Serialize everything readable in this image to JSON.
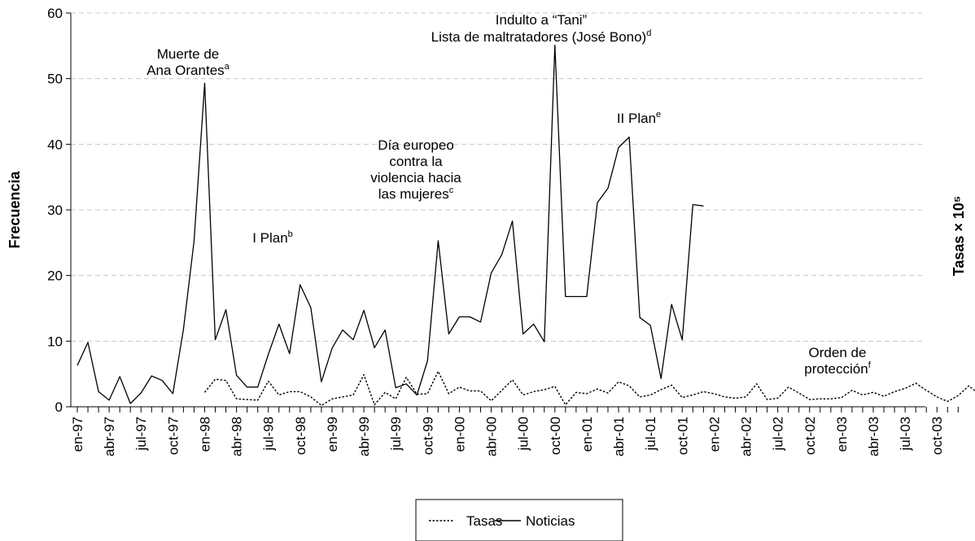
{
  "chart_data": {
    "type": "line",
    "ylabel": "Frecuencia",
    "y2label": "Tasas × 10⁵",
    "ylim": [
      0,
      60
    ],
    "yticks": [
      0,
      10,
      20,
      30,
      40,
      50,
      60
    ],
    "grid": "horizontal dashed",
    "legend_placement": "bottom-center",
    "x_start": "en-97",
    "x_ticks": [
      "en-97",
      "abr-97",
      "jul-97",
      "oct-97",
      "en-98",
      "abr-98",
      "jul-98",
      "oct-98",
      "en-99",
      "abr-99",
      "jul-99",
      "oct-99",
      "en-00",
      "abr-00",
      "jul-00",
      "oct-00",
      "en-01",
      "abr-01",
      "jul-01",
      "oct-01",
      "en-02",
      "abr-02",
      "jul-02",
      "oct-02",
      "en-03",
      "abr-03",
      "jul-03",
      "oct-03"
    ],
    "series": [
      {
        "name": "Noticias",
        "style": "solid",
        "values": [
          6.3,
          9.8,
          2.3,
          1.0,
          4.6,
          0.5,
          2.1,
          4.7,
          4.0,
          2.0,
          11.8,
          25.2,
          49.3,
          10.2,
          14.8,
          4.8,
          3.0,
          3.0,
          8.0,
          12.6,
          8.1,
          18.6,
          15.1,
          3.8,
          8.9,
          11.7,
          10.2,
          14.7,
          9.0,
          11.7,
          2.9,
          3.5,
          1.8,
          7.0,
          25.3,
          11.1,
          13.7,
          13.7,
          12.9,
          20.4,
          23.2,
          28.3,
          11.1,
          12.6,
          9.9,
          55.1,
          16.8,
          16.8,
          16.8,
          31.1,
          33.3,
          39.5,
          41.1,
          13.6,
          12.4,
          4.3,
          15.6,
          10.2,
          30.8,
          30.6
        ]
      },
      {
        "name": "Tasas",
        "style": "dotted",
        "start_index": 12,
        "values": [
          2.2,
          4.2,
          4.0,
          1.2,
          1.1,
          1.0,
          3.9,
          1.8,
          2.3,
          2.3,
          1.5,
          0.2,
          1.2,
          1.5,
          1.8,
          4.9,
          0.3,
          2.2,
          1.2,
          4.5,
          1.9,
          2.0,
          5.4,
          2.0,
          3.0,
          2.4,
          2.4,
          0.9,
          2.5,
          4.1,
          1.8,
          2.3,
          2.6,
          3.1,
          0.3,
          2.2,
          2.0,
          2.7,
          2.1,
          3.8,
          3.2,
          1.5,
          1.8,
          2.6,
          3.3,
          1.4,
          1.8,
          2.3,
          2.0,
          1.5,
          1.3,
          1.5,
          3.5,
          1.1,
          1.3,
          3.0,
          2.1,
          1.1,
          1.2,
          1.2,
          1.4,
          2.5,
          1.8,
          2.2,
          1.6,
          2.3,
          2.8,
          3.6,
          2.5,
          1.5,
          0.8,
          1.7,
          3.2,
          1.9
        ]
      }
    ],
    "annotations": [
      {
        "text": "Muerte de",
        "sup": ""
      },
      {
        "text": "Ana Orantes",
        "sup": "a"
      },
      {
        "text": "I Plan",
        "sup": "b"
      },
      {
        "text": "Día europeo",
        "sup": ""
      },
      {
        "text": "contra la",
        "sup": ""
      },
      {
        "text": "violencia hacia",
        "sup": ""
      },
      {
        "text": "las mujeres",
        "sup": "c"
      },
      {
        "text": "Indulto a “Tani”",
        "sup": ""
      },
      {
        "text": "Lista de maltratadores (José Bono)",
        "sup": "d"
      },
      {
        "text": "II Plan",
        "sup": "e"
      },
      {
        "text": "Orden de",
        "sup": ""
      },
      {
        "text": "protección",
        "sup": "f"
      }
    ]
  }
}
